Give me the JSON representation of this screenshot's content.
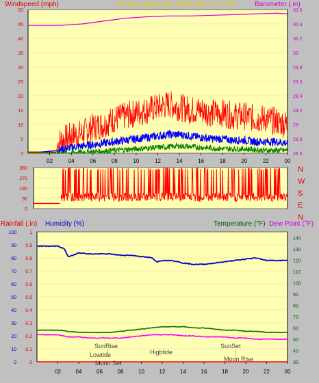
{
  "header": {
    "windspeed_label": "Windspeed (mph)",
    "title": "24 hour graph day   September 24 2018",
    "barometer_label": "Barometer (.in)"
  },
  "colors": {
    "plot_bg": "#ffffb4",
    "wind_avg": "#0000ff",
    "wind_gust": "#ff0000",
    "wind_low": "#008000",
    "barometer": "#e000e0",
    "humidity": "#0000c8",
    "temperature": "#007000",
    "dewpoint": "#ff00ff",
    "rainfall": "#ff0000",
    "title_text": "#e8d000",
    "label_red": "#e00000",
    "label_blue": "#0000c0",
    "label_green": "#006000",
    "label_magenta": "#d000d0"
  },
  "x_ticks": [
    "02",
    "04",
    "06",
    "08",
    "10",
    "12",
    "14",
    "16",
    "18",
    "20",
    "22",
    "00"
  ],
  "bottom_header": {
    "rainfall_label": "Rainfall (.in)",
    "humidity_label": "Humidity (%)",
    "temperature_label": "Temperature (°F)",
    "dewpoint_label": "Dew Point (°F)"
  },
  "annotations": {
    "sunrise": "SunRise",
    "lowtide": "Lowtide",
    "moonset": "Moon Set",
    "hightide": "Hightide",
    "sunset": "SunSet",
    "moonrise": "Moon Rise"
  },
  "direction_letters": [
    "N",
    "W",
    "S",
    "E",
    "N"
  ],
  "chart_data": [
    {
      "type": "line",
      "title": "24 hour graph day   September 24 2018",
      "left_axis": {
        "label": "Windspeed (mph)",
        "range": [
          0,
          50
        ],
        "ticks": [
          "0",
          "5",
          "10",
          "15",
          "20",
          "25",
          "30",
          "35",
          "40",
          "45",
          "50"
        ]
      },
      "right_axis": {
        "label": "Barometer (.in)",
        "range": [
          28.6,
          30.6
        ],
        "ticks": [
          "28.6",
          "28.8",
          "29",
          "29.2",
          "29.4",
          "29.6",
          "29.8",
          "30",
          "30.2",
          "30.4",
          "30.6"
        ]
      },
      "x_hours_range": [
        0,
        24
      ],
      "series": [
        {
          "role": "barometer",
          "axis": "right",
          "points": [
            [
              0,
              30.38
            ],
            [
              3,
              30.38
            ],
            [
              5,
              30.4
            ],
            [
              7,
              30.44
            ],
            [
              9,
              30.48
            ],
            [
              11,
              30.5
            ],
            [
              13,
              30.51
            ],
            [
              15,
              30.51
            ],
            [
              17,
              30.52
            ],
            [
              19,
              30.53
            ],
            [
              21,
              30.54
            ],
            [
              23,
              30.55
            ],
            [
              24,
              30.54
            ]
          ]
        },
        {
          "role": "wind_gust",
          "axis": "left",
          "points": [
            [
              0,
              0.5
            ],
            [
              2.6,
              0.5
            ],
            [
              2.8,
              4
            ],
            [
              4,
              6
            ],
            [
              5,
              7
            ],
            [
              6,
              9
            ],
            [
              7,
              10
            ],
            [
              8,
              12
            ],
            [
              9,
              13
            ],
            [
              10,
              14
            ],
            [
              11,
              15
            ],
            [
              12,
              16
            ],
            [
              13,
              17
            ],
            [
              14,
              16
            ],
            [
              15,
              15
            ],
            [
              16,
              15
            ],
            [
              17,
              14
            ],
            [
              18,
              14
            ],
            [
              19,
              13
            ],
            [
              20,
              13
            ],
            [
              21,
              12
            ],
            [
              22,
              12
            ],
            [
              23,
              11
            ],
            [
              24,
              10
            ]
          ]
        },
        {
          "role": "wind_avg",
          "axis": "left",
          "points": [
            [
              0,
              0
            ],
            [
              2.8,
              1
            ],
            [
              4,
              2
            ],
            [
              5,
              2.5
            ],
            [
              6,
              3
            ],
            [
              7,
              3.5
            ],
            [
              8,
              4
            ],
            [
              9,
              4.5
            ],
            [
              10,
              5
            ],
            [
              11,
              5.5
            ],
            [
              12,
              6
            ],
            [
              13,
              6.5
            ],
            [
              14,
              6.5
            ],
            [
              15,
              6
            ],
            [
              16,
              5.5
            ],
            [
              17,
              5
            ],
            [
              18,
              5
            ],
            [
              19,
              4.5
            ],
            [
              20,
              4.5
            ],
            [
              21,
              4
            ],
            [
              22,
              4
            ],
            [
              23,
              4
            ],
            [
              24,
              3.5
            ]
          ]
        },
        {
          "role": "wind_low",
          "axis": "left",
          "points": [
            [
              0,
              0
            ],
            [
              3,
              0
            ],
            [
              6,
              0.5
            ],
            [
              8,
              1
            ],
            [
              10,
              1.5
            ],
            [
              12,
              2
            ],
            [
              14,
              2.5
            ],
            [
              16,
              2
            ],
            [
              18,
              1.5
            ],
            [
              20,
              1.5
            ],
            [
              22,
              1
            ],
            [
              24,
              1
            ]
          ]
        }
      ]
    },
    {
      "type": "line",
      "role": "wind_direction",
      "y_axis": {
        "range": [
          0,
          360
        ],
        "ticks": [
          "0",
          "90",
          "180",
          "270",
          "360"
        ]
      },
      "x_hours_range": [
        0,
        24
      ],
      "baseline": [
        [
          0,
          45
        ],
        [
          2.5,
          45
        ]
      ],
      "active_from_hour": 2.6,
      "typical_range_deg": [
        60,
        360
      ]
    },
    {
      "type": "line",
      "left_axis_rain": {
        "label": "Rainfall (.in)",
        "range": [
          0,
          1
        ],
        "ticks": [
          "0",
          "0.1",
          "0.2",
          "0.3",
          "0.4",
          "0.5",
          "0.6",
          "0.7",
          "0.8",
          "0.9",
          "1"
        ]
      },
      "left_axis_humidity": {
        "label": "Humidity (%)",
        "range": [
          0,
          100
        ],
        "ticks": [
          "0",
          "10",
          "20",
          "30",
          "40",
          "50",
          "60",
          "70",
          "80",
          "90",
          "100"
        ]
      },
      "right_axis_temp": {
        "label": "Temperature (°F)",
        "range": [
          30,
          145
        ],
        "ticks": [
          "30",
          "40",
          "50",
          "60",
          "70",
          "80",
          "90",
          "100",
          "110",
          "120",
          "130",
          "140"
        ]
      },
      "x_hours_range": [
        0,
        24
      ],
      "series": [
        {
          "role": "humidity",
          "axis": "humidity",
          "points": [
            [
              0,
              89
            ],
            [
              1,
              89
            ],
            [
              2,
              89
            ],
            [
              2.6,
              87
            ],
            [
              3,
              81
            ],
            [
              3.5,
              82
            ],
            [
              4,
              84
            ],
            [
              5,
              83
            ],
            [
              6,
              83
            ],
            [
              7,
              83
            ],
            [
              8,
              82
            ],
            [
              9,
              82
            ],
            [
              10,
              81
            ],
            [
              11,
              80
            ],
            [
              11.5,
              77
            ],
            [
              12,
              78
            ],
            [
              13,
              78
            ],
            [
              14,
              76
            ],
            [
              15,
              75
            ],
            [
              16,
              75
            ],
            [
              17,
              76
            ],
            [
              18,
              77
            ],
            [
              19,
              78
            ],
            [
              20,
              79
            ],
            [
              21,
              80
            ],
            [
              22,
              78
            ],
            [
              23,
              78
            ],
            [
              24,
              78
            ]
          ]
        },
        {
          "role": "temperature",
          "axis": "temp",
          "points": [
            [
              0,
              58
            ],
            [
              2,
              58
            ],
            [
              3,
              57
            ],
            [
              4,
              56
            ],
            [
              5,
              56
            ],
            [
              6,
              56
            ],
            [
              7,
              56
            ],
            [
              8,
              57
            ],
            [
              9,
              58
            ],
            [
              10,
              59
            ],
            [
              11,
              60
            ],
            [
              12,
              61
            ],
            [
              13,
              61
            ],
            [
              14,
              61
            ],
            [
              15,
              60
            ],
            [
              16,
              60
            ],
            [
              17,
              59
            ],
            [
              18,
              58
            ],
            [
              19,
              58
            ],
            [
              20,
              57
            ],
            [
              21,
              57
            ],
            [
              22,
              56
            ],
            [
              23,
              56
            ],
            [
              24,
              56
            ]
          ]
        },
        {
          "role": "dewpoint",
          "axis": "temp",
          "points": [
            [
              0,
              54
            ],
            [
              2,
              54
            ],
            [
              3,
              52
            ],
            [
              4,
              52
            ],
            [
              5,
              51
            ],
            [
              6,
              51
            ],
            [
              7,
              51
            ],
            [
              8,
              51
            ],
            [
              9,
              52
            ],
            [
              10,
              53
            ],
            [
              11,
              54
            ],
            [
              12,
              54
            ],
            [
              13,
              54
            ],
            [
              14,
              53
            ],
            [
              15,
              53
            ],
            [
              16,
              52
            ],
            [
              17,
              52
            ],
            [
              18,
              52
            ],
            [
              19,
              51
            ],
            [
              20,
              51
            ],
            [
              21,
              50
            ],
            [
              22,
              50
            ],
            [
              23,
              50
            ],
            [
              24,
              50
            ]
          ]
        },
        {
          "role": "rainfall",
          "axis": "rain",
          "points": [
            [
              0,
              0
            ],
            [
              24,
              0
            ]
          ]
        }
      ],
      "annotation_hours": {
        "sunrise": 6.8,
        "lowtide": 6.8,
        "moonset": 7.2,
        "hightide": 11.8,
        "sunset": 19.0,
        "moonrise": 19.2
      }
    }
  ]
}
